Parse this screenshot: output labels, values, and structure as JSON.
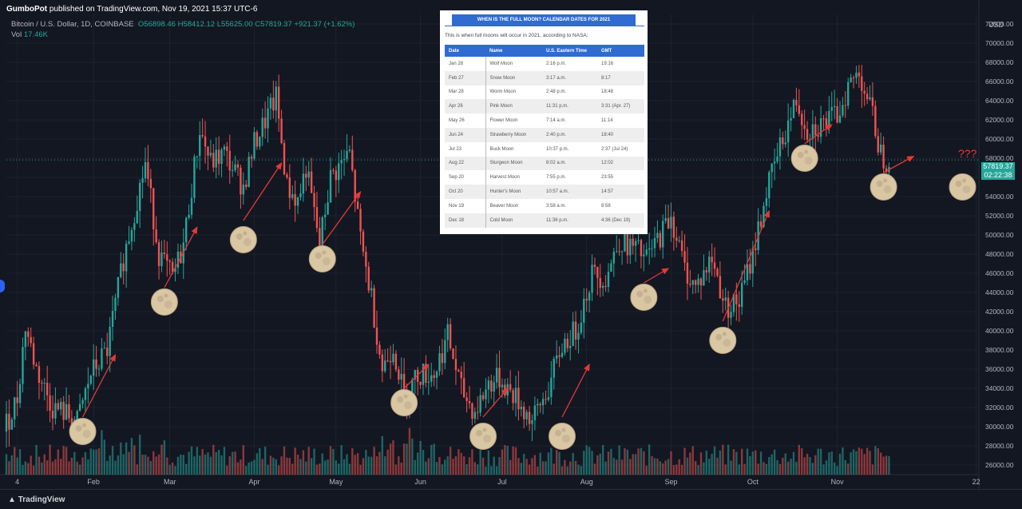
{
  "header": {
    "author": "GumboPot",
    "published_text": "published on TradingView.com, Nov 19, 2021 15:37 UTC-6"
  },
  "symbol": {
    "name": "Bitcoin / U.S. Dollar, 1D, COINBASE",
    "open": "O56898.46",
    "high": "H58412.12",
    "low": "L55625.00",
    "close": "C57819.37",
    "change": "+921.37 (+1.62%)",
    "vol_label": "Vol",
    "vol_value": "17.46K"
  },
  "price_axis": {
    "currency": "USD",
    "current_price": "57819.37",
    "countdown": "02:22:38"
  },
  "annotation_text": "???",
  "footer": {
    "logo_text": "TradingView"
  },
  "colors": {
    "up": "#26a69a",
    "down": "#ef5350",
    "background": "#131722",
    "arrow": "#e53935",
    "table_header": "#2f6bd1"
  },
  "calendar": {
    "title": "WHEN IS THE FULL MOON? CALENDAR DATES FOR 2021",
    "intro": "This is when full moons will occur in 2021, according to NASA:",
    "headers": [
      "Date",
      "Name",
      "U.S. Eastern Time",
      "GMT"
    ],
    "rows": [
      [
        "Jan 28",
        "Wolf Moon",
        "2:16 p.m.",
        "19:16"
      ],
      [
        "Feb 27",
        "Snow Moon",
        "3:17 a.m.",
        "8:17"
      ],
      [
        "Mar 28",
        "Worm Moon",
        "2:48 p.m.",
        "18:48"
      ],
      [
        "Apr 26",
        "Pink Moon",
        "11:31 p.m.",
        "3:31 (Apr. 27)"
      ],
      [
        "May 26",
        "Flower Moon",
        "7:14 a.m.",
        "11:14"
      ],
      [
        "Jun 24",
        "Strawberry Moon",
        "2:40 p.m.",
        "18:40"
      ],
      [
        "Jul 23",
        "Buck Moon",
        "10:37 p.m.",
        "2:37 (Jul 24)"
      ],
      [
        "Aug 22",
        "Sturgeon Moon",
        "8:02 a.m.",
        "12:02"
      ],
      [
        "Sep 20",
        "Harvest Moon",
        "7:55 p.m.",
        "23:55"
      ],
      [
        "Oct 20",
        "Hunter's Moon",
        "10:57 a.m.",
        "14:57"
      ],
      [
        "Nov 19",
        "Beaver Moon",
        "3:58 a.m.",
        "8:58"
      ],
      [
        "Dec 18",
        "Cold Moon",
        "11:36 p.m.",
        "4:36 (Dec 19)"
      ]
    ]
  },
  "chart_data": {
    "type": "candlestick",
    "title": "Bitcoin / U.S. Dollar, 1D, COINBASE",
    "ylabel": "USD",
    "ylim": [
      25000,
      73000
    ],
    "y_ticks": [
      26000,
      28000,
      30000,
      32000,
      34000,
      36000,
      38000,
      40000,
      42000,
      44000,
      46000,
      48000,
      50000,
      52000,
      54000,
      56000,
      58000,
      60000,
      62000,
      64000,
      66000,
      68000,
      70000,
      72000
    ],
    "y_tick_labels": [
      "26000.00",
      "28000.00",
      "30000.00",
      "32000.00",
      "34000.00",
      "36000.00",
      "38000.00",
      "40000.00",
      "42000.00",
      "44000.00",
      "46000.00",
      "48000.00",
      "50000.00",
      "52000.00",
      "54000.00",
      "56000.00",
      "58000.00",
      "60000.00",
      "62000.00",
      "64000.00",
      "66000.00",
      "68000.00",
      "70000.00",
      "72000.00"
    ],
    "x_ticks": [
      "4",
      "Feb",
      "Mar",
      "Apr",
      "May",
      "Jun",
      "Jul",
      "Aug",
      "Sep",
      "Oct",
      "Nov",
      "22"
    ],
    "x_tick_days": [
      4,
      32,
      60,
      91,
      121,
      152,
      182,
      213,
      244,
      274,
      305,
      356
    ],
    "x_range_days": [
      0,
      357
    ],
    "price_path": [
      [
        0,
        29500
      ],
      [
        5,
        33000
      ],
      [
        8,
        40500
      ],
      [
        12,
        36000
      ],
      [
        18,
        32000
      ],
      [
        22,
        31500
      ],
      [
        27,
        30500
      ],
      [
        32,
        35500
      ],
      [
        38,
        38000
      ],
      [
        44,
        47500
      ],
      [
        52,
        57500
      ],
      [
        57,
        48000
      ],
      [
        62,
        45500
      ],
      [
        66,
        49000
      ],
      [
        72,
        61000
      ],
      [
        76,
        57500
      ],
      [
        81,
        58500
      ],
      [
        88,
        55000
      ],
      [
        92,
        59500
      ],
      [
        100,
        64300
      ],
      [
        104,
        55000
      ],
      [
        108,
        53500
      ],
      [
        111,
        57000
      ],
      [
        116,
        49000
      ],
      [
        120,
        56000
      ],
      [
        127,
        58500
      ],
      [
        131,
        49500
      ],
      [
        135,
        43500
      ],
      [
        139,
        36000
      ],
      [
        143,
        38500
      ],
      [
        147,
        33000
      ],
      [
        152,
        35500
      ],
      [
        158,
        35500
      ],
      [
        163,
        39500
      ],
      [
        168,
        33800
      ],
      [
        173,
        31500
      ],
      [
        178,
        34500
      ],
      [
        182,
        35000
      ],
      [
        188,
        33000
      ],
      [
        194,
        30500
      ],
      [
        200,
        34000
      ],
      [
        205,
        38500
      ],
      [
        210,
        40000
      ],
      [
        216,
        46000
      ],
      [
        221,
        45500
      ],
      [
        226,
        49500
      ],
      [
        232,
        48500
      ],
      [
        236,
        47500
      ],
      [
        241,
        50000
      ],
      [
        245,
        52000
      ],
      [
        250,
        46500
      ],
      [
        254,
        44500
      ],
      [
        260,
        47500
      ],
      [
        265,
        42500
      ],
      [
        270,
        43000
      ],
      [
        275,
        48000
      ],
      [
        280,
        54500
      ],
      [
        286,
        60000
      ],
      [
        291,
        64000
      ],
      [
        295,
        61000
      ],
      [
        300,
        61500
      ],
      [
        306,
        62500
      ],
      [
        310,
        65500
      ],
      [
        314,
        67000
      ],
      [
        318,
        63500
      ],
      [
        322,
        58500
      ],
      [
        324,
        57800
      ]
    ],
    "full_moon_days": [
      28,
      58,
      87,
      116,
      146,
      175,
      204,
      234,
      263,
      293,
      322,
      351
    ],
    "full_moon_prices": [
      29500,
      43000,
      49500,
      47500,
      32500,
      29000,
      29000,
      43500,
      39000,
      58000,
      55000,
      55000
    ],
    "arrows": [
      {
        "from": [
          28,
          31000
        ],
        "to": [
          40,
          37500
        ]
      },
      {
        "from": [
          58,
          44500
        ],
        "to": [
          70,
          50800
        ]
      },
      {
        "from": [
          87,
          51500
        ],
        "to": [
          101,
          57500
        ]
      },
      {
        "from": [
          116,
          49000
        ],
        "to": [
          130,
          54500
        ]
      },
      {
        "from": [
          146,
          34000
        ],
        "to": [
          155,
          36500
        ]
      },
      {
        "from": [
          175,
          31000
        ],
        "to": [
          184,
          34000
        ]
      },
      {
        "from": [
          204,
          31000
        ],
        "to": [
          214,
          36500
        ]
      },
      {
        "from": [
          234,
          45000
        ],
        "to": [
          243,
          46500
        ]
      },
      {
        "from": [
          263,
          41000
        ],
        "to": [
          280,
          52500
        ]
      },
      {
        "from": [
          293,
          59500
        ],
        "to": [
          303,
          61500
        ]
      },
      {
        "from": [
          322,
          56500
        ],
        "to": [
          333,
          58200
        ]
      }
    ]
  }
}
